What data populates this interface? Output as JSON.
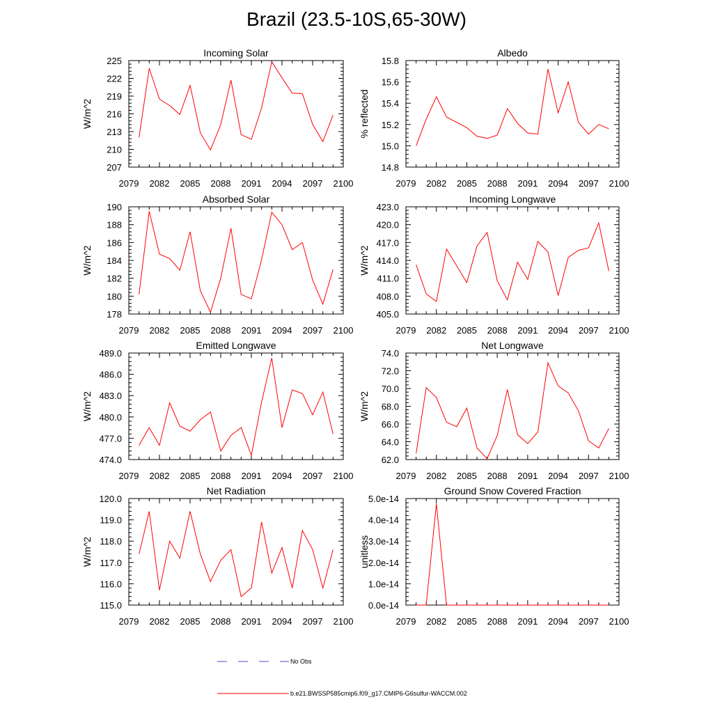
{
  "title": "Brazil (23.5-10S,65-30W)",
  "colors": {
    "series": "#ff0000",
    "obs": "#4d4dcc",
    "axis": "#000000"
  },
  "legend": {
    "obs_label": "No Obs",
    "model_label": "b.e21.BWSSP585cmip6.f09_g17.CMIP6-G6sulfur-WACCM.002"
  },
  "chart_data": [
    {
      "type": "line",
      "title": "Incoming Solar",
      "ylabel": "W/m^2",
      "xlim": [
        2079,
        2100
      ],
      "ylim": [
        207,
        225
      ],
      "xticks": [
        "2079",
        "2082",
        "2085",
        "2088",
        "2091",
        "2094",
        "2097",
        "2100"
      ],
      "yticks": [
        "207",
        "210",
        "213",
        "216",
        "219",
        "222",
        "225"
      ],
      "x": [
        2080,
        2081,
        2082,
        2083,
        2084,
        2085,
        2086,
        2087,
        2088,
        2089,
        2090,
        2091,
        2092,
        2093,
        2094,
        2095,
        2096,
        2097,
        2098,
        2099
      ],
      "values": [
        212.0,
        223.7,
        218.5,
        217.4,
        215.9,
        220.8,
        212.8,
        209.9,
        214.2,
        221.7,
        212.5,
        211.7,
        217.0,
        224.8,
        222.1,
        219.5,
        219.4,
        214.2,
        211.3,
        215.8
      ]
    },
    {
      "type": "line",
      "title": "Albedo",
      "ylabel": "% reflected",
      "xlim": [
        2079,
        2100
      ],
      "ylim": [
        14.8,
        15.8
      ],
      "xticks": [
        "2079",
        "2082",
        "2085",
        "2088",
        "2091",
        "2094",
        "2097",
        "2100"
      ],
      "yticks": [
        "14.8",
        "15.0",
        "15.2",
        "15.4",
        "15.6",
        "15.8"
      ],
      "x": [
        2080,
        2081,
        2082,
        2083,
        2084,
        2085,
        2086,
        2087,
        2088,
        2089,
        2090,
        2091,
        2092,
        2093,
        2094,
        2095,
        2096,
        2097,
        2098,
        2099
      ],
      "values": [
        15.0,
        15.25,
        15.46,
        15.27,
        15.22,
        15.17,
        15.09,
        15.07,
        15.1,
        15.35,
        15.21,
        15.12,
        15.11,
        15.72,
        15.31,
        15.6,
        15.22,
        15.11,
        15.2,
        15.16
      ]
    },
    {
      "type": "line",
      "title": "Absorbed Solar",
      "ylabel": "W/m^2",
      "xlim": [
        2079,
        2100
      ],
      "ylim": [
        178,
        190
      ],
      "xticks": [
        "2079",
        "2082",
        "2085",
        "2088",
        "2091",
        "2094",
        "2097",
        "2100"
      ],
      "yticks": [
        "178",
        "180",
        "182",
        "184",
        "186",
        "188",
        "190"
      ],
      "x": [
        2080,
        2081,
        2082,
        2083,
        2084,
        2085,
        2086,
        2087,
        2088,
        2089,
        2090,
        2091,
        2092,
        2093,
        2094,
        2095,
        2096,
        2097,
        2098,
        2099
      ],
      "values": [
        180.2,
        189.5,
        184.7,
        184.2,
        182.9,
        187.2,
        180.6,
        178.2,
        182.0,
        187.6,
        180.2,
        179.7,
        184.1,
        189.4,
        188.0,
        185.2,
        186.0,
        181.8,
        179.1,
        183.0
      ]
    },
    {
      "type": "line",
      "title": "Incoming Longwave",
      "ylabel": "W/m^2",
      "xlim": [
        2079,
        2100
      ],
      "ylim": [
        405.0,
        423.0
      ],
      "xticks": [
        "2079",
        "2082",
        "2085",
        "2088",
        "2091",
        "2094",
        "2097",
        "2100"
      ],
      "yticks": [
        "405.0",
        "408.0",
        "411.0",
        "414.0",
        "417.0",
        "420.0",
        "423.0"
      ],
      "x": [
        2080,
        2081,
        2082,
        2083,
        2084,
        2085,
        2086,
        2087,
        2088,
        2089,
        2090,
        2091,
        2092,
        2093,
        2094,
        2095,
        2096,
        2097,
        2098,
        2099
      ],
      "values": [
        413.3,
        408.4,
        407.1,
        415.9,
        413.1,
        410.3,
        416.4,
        418.7,
        410.6,
        407.4,
        413.7,
        410.8,
        417.2,
        415.4,
        408.1,
        414.5,
        415.7,
        416.1,
        420.3,
        412.2
      ]
    },
    {
      "type": "line",
      "title": "Emitted Longwave",
      "ylabel": "W/m^2",
      "xlim": [
        2079,
        2100
      ],
      "ylim": [
        474.0,
        489.0
      ],
      "xticks": [
        "2079",
        "2082",
        "2085",
        "2088",
        "2091",
        "2094",
        "2097",
        "2100"
      ],
      "yticks": [
        "474.0",
        "477.0",
        "480.0",
        "483.0",
        "486.0",
        "489.0"
      ],
      "x": [
        2080,
        2081,
        2082,
        2083,
        2084,
        2085,
        2086,
        2087,
        2088,
        2089,
        2090,
        2091,
        2092,
        2093,
        2094,
        2095,
        2096,
        2097,
        2098,
        2099
      ],
      "values": [
        476.0,
        478.5,
        476.0,
        482.0,
        478.7,
        478.0,
        479.6,
        480.7,
        475.2,
        477.4,
        478.5,
        474.6,
        482.1,
        488.3,
        478.5,
        483.8,
        483.3,
        480.3,
        483.5,
        477.6
      ]
    },
    {
      "type": "line",
      "title": "Net Longwave",
      "ylabel": "W/m^2",
      "xlim": [
        2079,
        2100
      ],
      "ylim": [
        62.0,
        74.0
      ],
      "xticks": [
        "2079",
        "2082",
        "2085",
        "2088",
        "2091",
        "2094",
        "2097",
        "2100"
      ],
      "yticks": [
        "62.0",
        "64.0",
        "66.0",
        "68.0",
        "70.0",
        "72.0",
        "74.0"
      ],
      "x": [
        2080,
        2081,
        2082,
        2083,
        2084,
        2085,
        2086,
        2087,
        2088,
        2089,
        2090,
        2091,
        2092,
        2093,
        2094,
        2095,
        2096,
        2097,
        2098,
        2099
      ],
      "values": [
        62.7,
        70.1,
        69.0,
        66.2,
        65.7,
        67.8,
        63.3,
        62.1,
        64.7,
        69.9,
        64.8,
        63.8,
        65.1,
        72.9,
        70.3,
        69.5,
        67.5,
        64.1,
        63.3,
        65.5
      ]
    },
    {
      "type": "line",
      "title": "Net Radiation",
      "ylabel": "W/m^2",
      "xlim": [
        2079,
        2100
      ],
      "ylim": [
        115.0,
        120.0
      ],
      "xticks": [
        "2079",
        "2082",
        "2085",
        "2088",
        "2091",
        "2094",
        "2097",
        "2100"
      ],
      "yticks": [
        "115.0",
        "116.0",
        "117.0",
        "118.0",
        "119.0",
        "120.0"
      ],
      "x": [
        2080,
        2081,
        2082,
        2083,
        2084,
        2085,
        2086,
        2087,
        2088,
        2089,
        2090,
        2091,
        2092,
        2093,
        2094,
        2095,
        2096,
        2097,
        2098,
        2099
      ],
      "values": [
        117.4,
        119.4,
        115.7,
        118.0,
        117.2,
        119.4,
        117.4,
        116.1,
        117.1,
        117.6,
        115.4,
        115.8,
        118.9,
        116.5,
        117.7,
        115.8,
        118.5,
        117.6,
        115.8,
        117.6
      ]
    },
    {
      "type": "line",
      "title": "Ground Snow Covered Fraction",
      "ylabel": "unitless",
      "xlim": [
        2079,
        2100
      ],
      "ylim": [
        0,
        5e-14
      ],
      "xticks": [
        "2079",
        "2082",
        "2085",
        "2088",
        "2091",
        "2094",
        "2097",
        "2100"
      ],
      "yticks": [
        "0.0e-14",
        "1.0e-14",
        "2.0e-14",
        "3.0e-14",
        "4.0e-14",
        "5.0e-14"
      ],
      "x": [
        2080,
        2081,
        2082,
        2083,
        2084,
        2085,
        2086,
        2087,
        2088,
        2089,
        2090,
        2091,
        2092,
        2093,
        2094,
        2095,
        2096,
        2097,
        2098,
        2099
      ],
      "values": [
        0,
        0,
        4.75e-14,
        0,
        0,
        0,
        0,
        0,
        0,
        0,
        0,
        0,
        0,
        0,
        0,
        0,
        0,
        0,
        0,
        0
      ]
    }
  ]
}
